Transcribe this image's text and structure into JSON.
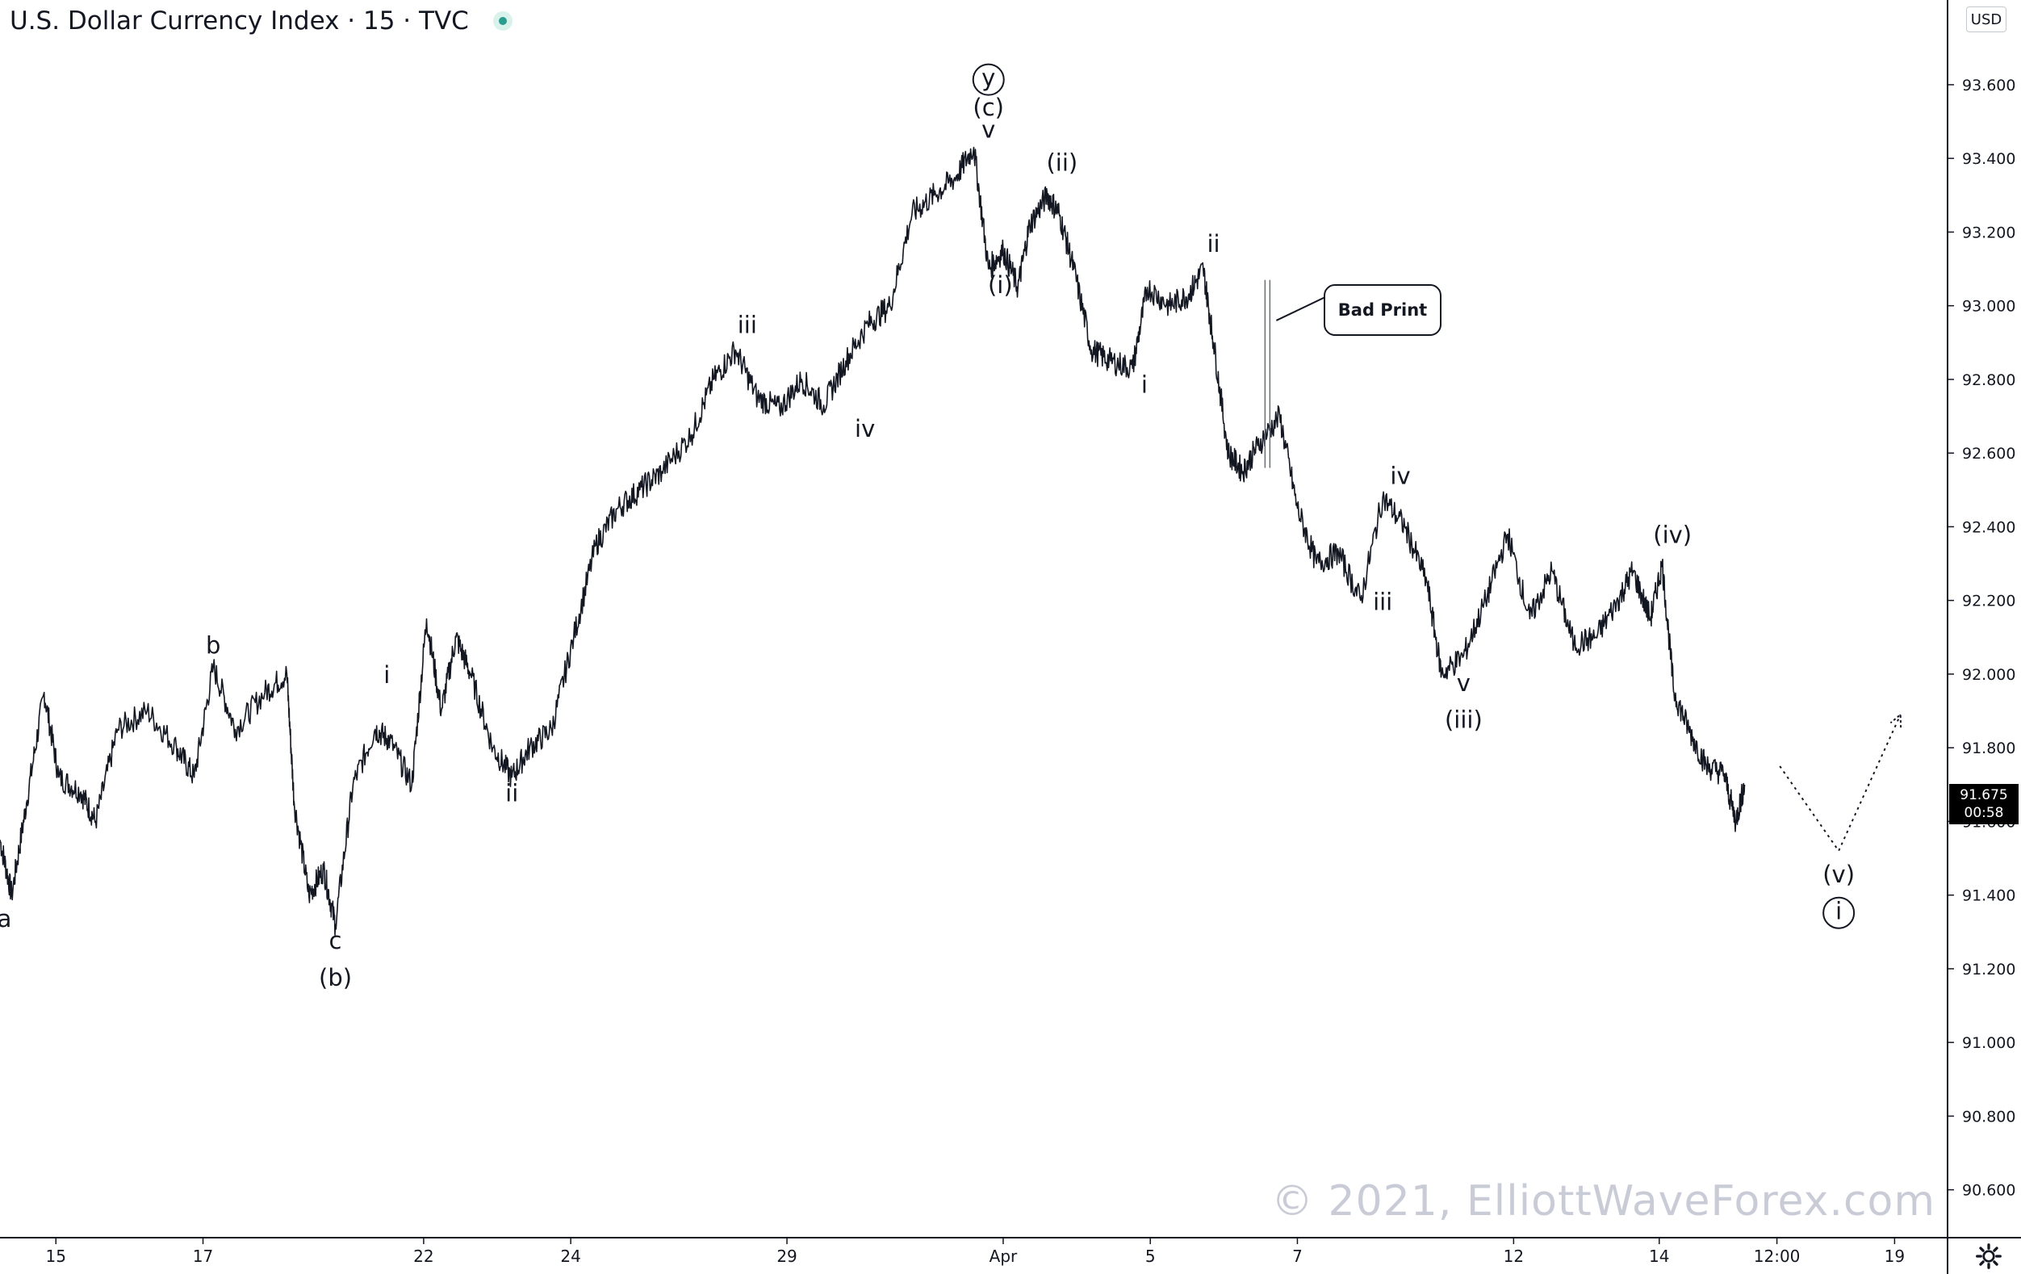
{
  "header": {
    "title": "U.S. Dollar Currency Index · 15 · TVC",
    "currency": "USD"
  },
  "price_tag": {
    "price": "91.675",
    "countdown": "00:58"
  },
  "callout": {
    "text": "Bad Print"
  },
  "watermark": "© 2021, ElliottWaveForex.com",
  "colors": {
    "candles": "#131722",
    "grid": "#e0e3eb",
    "watermark": "#c9ccd6",
    "status": "#2a9d8f"
  },
  "chart_data": {
    "type": "line",
    "y_axis": {
      "range": [
        90.47,
        93.83
      ],
      "ticks": [
        "93.600",
        "93.400",
        "93.200",
        "93.000",
        "92.800",
        "92.600",
        "92.400",
        "92.200",
        "92.000",
        "91.800",
        "91.600",
        "91.400",
        "91.200",
        "91.000",
        "90.800",
        "90.600"
      ],
      "side": "right"
    },
    "x_axis": {
      "ticks": [
        {
          "label": "15",
          "t": 0.38
        },
        {
          "label": "17",
          "t": 1.38
        },
        {
          "label": "22",
          "t": 2.88
        },
        {
          "label": "24",
          "t": 3.88
        },
        {
          "label": "29",
          "t": 5.35
        },
        {
          "label": "Apr",
          "t": 6.82
        },
        {
          "label": "5",
          "t": 7.82
        },
        {
          "label": "7",
          "t": 8.82
        },
        {
          "label": "12",
          "t": 10.29
        },
        {
          "label": "14",
          "t": 11.28
        },
        {
          "label": "12:00",
          "t": 12.08
        },
        {
          "label": "19",
          "t": 12.88
        }
      ],
      "range": [
        0,
        13.24
      ]
    },
    "series": [
      {
        "values": [
          [
            0.0,
            91.55
          ],
          [
            0.08,
            91.4
          ],
          [
            0.18,
            91.65
          ],
          [
            0.3,
            91.95
          ],
          [
            0.4,
            91.72
          ],
          [
            0.55,
            91.68
          ],
          [
            0.65,
            91.6
          ],
          [
            0.8,
            91.85
          ],
          [
            1.0,
            91.9
          ],
          [
            1.2,
            91.8
          ],
          [
            1.32,
            91.72
          ],
          [
            1.45,
            92.02
          ],
          [
            1.6,
            91.85
          ],
          [
            1.8,
            91.95
          ],
          [
            1.95,
            92.0
          ],
          [
            2.0,
            91.65
          ],
          [
            2.1,
            91.4
          ],
          [
            2.2,
            91.47
          ],
          [
            2.28,
            91.32
          ],
          [
            2.4,
            91.7
          ],
          [
            2.55,
            91.85
          ],
          [
            2.65,
            91.82
          ],
          [
            2.8,
            91.7
          ],
          [
            2.9,
            92.15
          ],
          [
            3.0,
            91.9
          ],
          [
            3.1,
            92.1
          ],
          [
            3.2,
            92.0
          ],
          [
            3.35,
            91.8
          ],
          [
            3.48,
            91.72
          ],
          [
            3.6,
            91.8
          ],
          [
            3.75,
            91.85
          ],
          [
            3.9,
            92.1
          ],
          [
            4.05,
            92.35
          ],
          [
            4.2,
            92.45
          ],
          [
            4.35,
            92.5
          ],
          [
            4.5,
            92.55
          ],
          [
            4.7,
            92.65
          ],
          [
            4.85,
            92.8
          ],
          [
            5.0,
            92.88
          ],
          [
            5.15,
            92.75
          ],
          [
            5.3,
            92.72
          ],
          [
            5.45,
            92.8
          ],
          [
            5.6,
            92.73
          ],
          [
            5.75,
            92.85
          ],
          [
            5.9,
            92.95
          ],
          [
            6.05,
            93.0
          ],
          [
            6.2,
            93.25
          ],
          [
            6.35,
            93.3
          ],
          [
            6.5,
            93.35
          ],
          [
            6.62,
            93.43
          ],
          [
            6.72,
            93.1
          ],
          [
            6.82,
            93.15
          ],
          [
            6.92,
            93.05
          ],
          [
            7.0,
            93.22
          ],
          [
            7.12,
            93.3
          ],
          [
            7.2,
            93.25
          ],
          [
            7.3,
            93.1
          ],
          [
            7.42,
            92.88
          ],
          [
            7.55,
            92.85
          ],
          [
            7.7,
            92.83
          ],
          [
            7.8,
            93.05
          ],
          [
            7.95,
            93.0
          ],
          [
            8.08,
            93.03
          ],
          [
            8.18,
            93.1
          ],
          [
            8.25,
            92.9
          ],
          [
            8.35,
            92.6
          ],
          [
            8.45,
            92.55
          ],
          [
            8.55,
            92.62
          ],
          [
            8.7,
            92.7
          ],
          [
            8.82,
            92.45
          ],
          [
            8.95,
            92.3
          ],
          [
            9.1,
            92.33
          ],
          [
            9.25,
            92.2
          ],
          [
            9.4,
            92.48
          ],
          [
            9.55,
            92.4
          ],
          [
            9.7,
            92.25
          ],
          [
            9.8,
            92.0
          ],
          [
            9.95,
            92.05
          ],
          [
            10.1,
            92.2
          ],
          [
            10.25,
            92.38
          ],
          [
            10.4,
            92.15
          ],
          [
            10.55,
            92.28
          ],
          [
            10.7,
            92.08
          ],
          [
            10.85,
            92.1
          ],
          [
            11.0,
            92.2
          ],
          [
            11.1,
            92.28
          ],
          [
            11.22,
            92.15
          ],
          [
            11.3,
            92.3
          ],
          [
            11.38,
            91.95
          ],
          [
            11.48,
            91.85
          ],
          [
            11.6,
            91.75
          ],
          [
            11.72,
            91.73
          ],
          [
            11.8,
            91.6
          ],
          [
            11.86,
            91.7
          ]
        ]
      }
    ],
    "projection": {
      "values": [
        [
          12.1,
          91.75
        ],
        [
          12.5,
          91.52
        ],
        [
          12.92,
          91.89
        ]
      ]
    },
    "annotations": [
      {
        "text": "a",
        "t": 0.03,
        "y": 91.38,
        "pos": "below"
      },
      {
        "text": "b",
        "t": 1.45,
        "y": 92.03,
        "pos": "above"
      },
      {
        "text": "c",
        "t": 2.28,
        "y": 91.32,
        "pos": "below"
      },
      {
        "text": "(b)",
        "t": 2.28,
        "y": 91.22,
        "pos": "below"
      },
      {
        "text": "i",
        "t": 2.63,
        "y": 91.95,
        "pos": "above"
      },
      {
        "text": "ii",
        "t": 3.48,
        "y": 91.72,
        "pos": "below"
      },
      {
        "text": "iii",
        "t": 5.08,
        "y": 92.9,
        "pos": "above"
      },
      {
        "text": "iv",
        "t": 5.88,
        "y": 92.71,
        "pos": "below"
      },
      {
        "text": "v",
        "t": 6.72,
        "y": 93.43,
        "pos": "above"
      },
      {
        "text": "(c)",
        "t": 6.72,
        "y": 93.49,
        "pos": "above"
      },
      {
        "text": "y",
        "t": 6.72,
        "y": 93.57,
        "pos": "above",
        "circled": true
      },
      {
        "text": "(i)",
        "t": 6.8,
        "y": 93.1,
        "pos": "below"
      },
      {
        "text": "(ii)",
        "t": 7.22,
        "y": 93.34,
        "pos": "above"
      },
      {
        "text": "i",
        "t": 7.78,
        "y": 92.83,
        "pos": "below"
      },
      {
        "text": "ii",
        "t": 8.25,
        "y": 93.12,
        "pos": "above"
      },
      {
        "text": "iii",
        "t": 9.4,
        "y": 92.24,
        "pos": "below"
      },
      {
        "text": "iv",
        "t": 9.52,
        "y": 92.49,
        "pos": "above"
      },
      {
        "text": "v",
        "t": 9.95,
        "y": 92.02,
        "pos": "below"
      },
      {
        "text": "(iii)",
        "t": 9.95,
        "y": 91.92,
        "pos": "below"
      },
      {
        "text": "(iv)",
        "t": 11.37,
        "y": 92.33,
        "pos": "above"
      },
      {
        "text": "(v)",
        "t": 12.5,
        "y": 91.5,
        "pos": "below"
      },
      {
        "text": "i",
        "t": 12.5,
        "y": 91.4,
        "pos": "below",
        "circled": true
      }
    ],
    "bad_print": {
      "t": 8.6,
      "low": 92.56,
      "high": 93.07
    },
    "grid": false,
    "legend": "none"
  }
}
